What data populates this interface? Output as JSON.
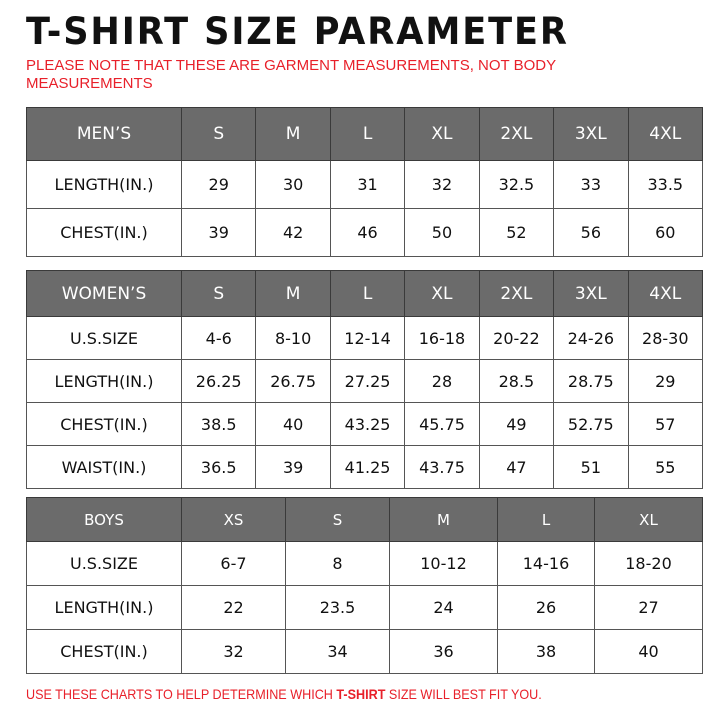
{
  "title": "T-SHIRT  SIZE  PARAMETER",
  "note": "PLEASE NOTE THAT THESE ARE GARMENT MEASUREMENTS, NOT BODY MEASUREMENTS",
  "footer": {
    "before": "USE THESE CHARTS TO HELP DETERMINE WHICH ",
    "highlight": "T-SHIRT",
    "after": " SIZE WILL BEST FIT YOU."
  },
  "colors": {
    "header_bg": "#6b6b6b",
    "note_red": "#e8202a"
  },
  "tables": {
    "men": {
      "header": [
        "MEN’S",
        "S",
        "M",
        "L",
        "XL",
        "2XL",
        "3XL",
        "4XL"
      ],
      "rows": [
        [
          "LENGTH(IN.)",
          "29",
          "30",
          "31",
          "32",
          "32.5",
          "33",
          "33.5"
        ],
        [
          "CHEST(IN.)",
          "39",
          "42",
          "46",
          "50",
          "52",
          "56",
          "60"
        ]
      ]
    },
    "women": {
      "header": [
        "WOMEN’S",
        "S",
        "M",
        "L",
        "XL",
        "2XL",
        "3XL",
        "4XL"
      ],
      "rows": [
        [
          "U.S.SIZE",
          "4-6",
          "8-10",
          "12-14",
          "16-18",
          "20-22",
          "24-26",
          "28-30"
        ],
        [
          "LENGTH(IN.)",
          "26.25",
          "26.75",
          "27.25",
          "28",
          "28.5",
          "28.75",
          "29"
        ],
        [
          "CHEST(IN.)",
          "38.5",
          "40",
          "43.25",
          "45.75",
          "49",
          "52.75",
          "57"
        ],
        [
          "WAIST(IN.)",
          "36.5",
          "39",
          "41.25",
          "43.75",
          "47",
          "51",
          "55"
        ]
      ]
    },
    "boys": {
      "header": [
        "BOYS",
        "XS",
        "S",
        "M",
        "L",
        "XL"
      ],
      "rows": [
        [
          "U.S.SIZE",
          "6-7",
          "8",
          "10-12",
          "14-16",
          "18-20"
        ],
        [
          "LENGTH(IN.)",
          "22",
          "23.5",
          "24",
          "26",
          "27"
        ],
        [
          "CHEST(IN.)",
          "32",
          "34",
          "36",
          "38",
          "40"
        ]
      ]
    }
  }
}
